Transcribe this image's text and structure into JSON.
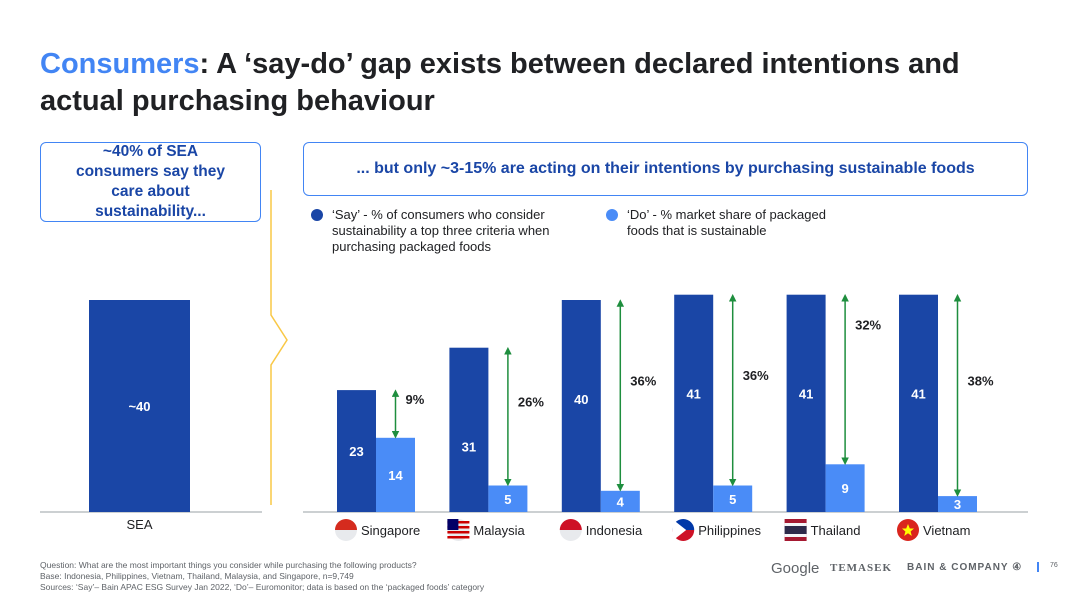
{
  "title": {
    "accent": "Consumers",
    "rest": ": A ‘say-do’ gap exists between declared intentions and actual purchasing behaviour"
  },
  "callouts": {
    "left": "~40% of SEA consumers say they care about sustainability...",
    "right": "... but only ~3-15% are acting on their intentions by purchasing sustainable foods"
  },
  "legend": {
    "say": "‘Say’ - % of consumers who consider sustainability a top three criteria when purchasing packaged foods",
    "do": "‘Do’ - % market share of packaged foods that is sustainable"
  },
  "colors": {
    "say": "#1a46a6",
    "do": "#4a8cf7",
    "gap_arrow": "#1e8e3e",
    "accent": "#4285f4"
  },
  "chart_data": [
    {
      "type": "bar",
      "categories": [
        "SEA"
      ],
      "series": [
        {
          "name": "Say",
          "values": [
            40
          ],
          "labels": [
            "~40"
          ]
        }
      ]
    },
    {
      "type": "bar",
      "categories": [
        "Singapore",
        "Malaysia",
        "Indonesia",
        "Philippines",
        "Thailand",
        "Vietnam"
      ],
      "series": [
        {
          "name": "Say",
          "values": [
            23,
            31,
            40,
            41,
            41,
            41
          ]
        },
        {
          "name": "Do",
          "values": [
            14,
            5,
            4,
            5,
            9,
            3
          ]
        }
      ],
      "gap_labels": [
        "9%",
        "26%",
        "36%",
        "36%",
        "32%",
        "38%"
      ],
      "flag_icons": [
        "singapore-flag-icon",
        "malaysia-flag-icon",
        "indonesia-flag-icon",
        "philippines-flag-icon",
        "thailand-flag-icon",
        "vietnam-flag-icon"
      ]
    }
  ],
  "footer": {
    "question": "Question: What are the most important things you consider while purchasing the following products?",
    "base": "Base: Indonesia, Philippines, Vietnam, Thailand, Malaysia, and Singapore, n=9,749",
    "sources": "Sources: ‘Say’– Bain APAC ESG Survey Jan 2022, ‘Do’– Euromonitor; data is based on the ‘packaged foods’ category"
  },
  "logos": {
    "google": "Google",
    "temasek": "TEMASEK",
    "bain": "BAIN & COMPANY"
  },
  "page_number": "76"
}
